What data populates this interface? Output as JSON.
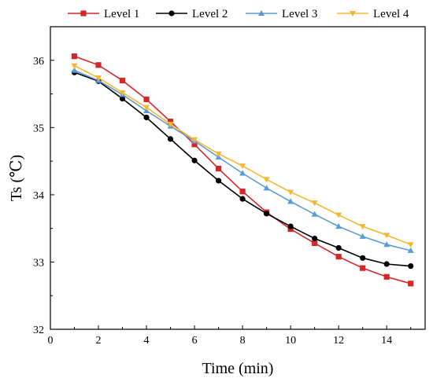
{
  "chart_data": {
    "type": "line",
    "title": "",
    "xlabel": "Time (min)",
    "ylabel": "Ts (℃)",
    "xlim": [
      0,
      15.6
    ],
    "ylim": [
      32,
      36.5
    ],
    "xticks": [
      0,
      2,
      4,
      6,
      8,
      10,
      12,
      14
    ],
    "yticks": [
      32,
      33,
      34,
      35,
      36
    ],
    "grid": false,
    "legend": "top (above plot)",
    "x": [
      1,
      2,
      3,
      4,
      5,
      6,
      7,
      8,
      9,
      10,
      11,
      12,
      13,
      14,
      15
    ],
    "series": [
      {
        "name": "Level 1",
        "color": "#d62728",
        "marker": "square",
        "values": [
          36.06,
          35.93,
          35.7,
          35.42,
          35.09,
          34.75,
          34.39,
          34.05,
          33.74,
          33.49,
          33.28,
          33.08,
          32.91,
          32.78,
          32.68
        ]
      },
      {
        "name": "Level 2",
        "color": "#000000",
        "marker": "circle",
        "values": [
          35.82,
          35.69,
          35.43,
          35.15,
          34.83,
          34.51,
          34.21,
          33.94,
          33.72,
          33.53,
          33.35,
          33.21,
          33.06,
          32.97,
          32.94
        ]
      },
      {
        "name": "Level 3",
        "color": "#5b9bd5",
        "marker": "triangle-up",
        "values": [
          35.85,
          35.7,
          35.49,
          35.25,
          35.02,
          34.8,
          34.56,
          34.32,
          34.1,
          33.9,
          33.71,
          33.53,
          33.38,
          33.26,
          33.17
        ]
      },
      {
        "name": "Level 4",
        "color": "#f5b730",
        "marker": "triangle-down",
        "values": [
          35.92,
          35.74,
          35.52,
          35.3,
          35.05,
          34.82,
          34.61,
          34.43,
          34.23,
          34.04,
          33.88,
          33.7,
          33.53,
          33.4,
          33.26
        ]
      }
    ]
  }
}
